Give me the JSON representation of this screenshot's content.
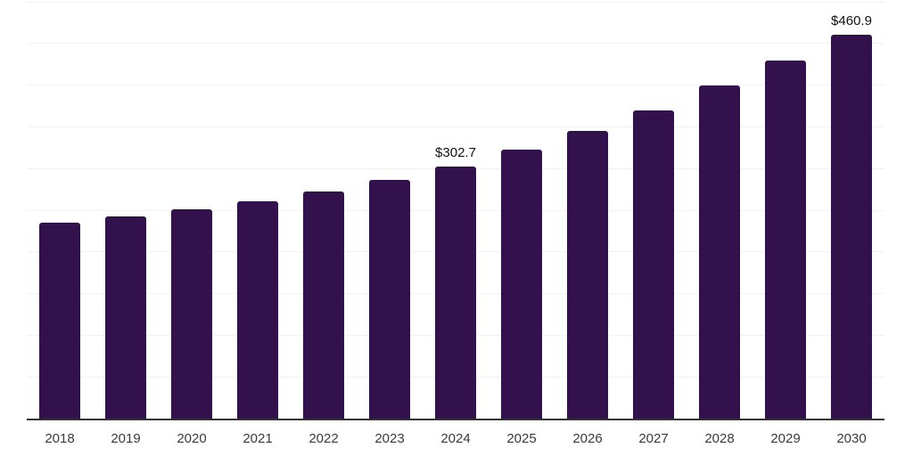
{
  "chart_data": {
    "type": "bar",
    "title": "",
    "xlabel": "",
    "ylabel": "",
    "categories": [
      "2018",
      "2019",
      "2020",
      "2021",
      "2022",
      "2023",
      "2024",
      "2025",
      "2026",
      "2027",
      "2028",
      "2029",
      "2030"
    ],
    "values": [
      235.0,
      242.5,
      251.1,
      260.7,
      272.4,
      286.3,
      302.7,
      322.7,
      345.1,
      369.7,
      399.6,
      429.5,
      460.9
    ],
    "labeled_points": [
      {
        "category": "2024",
        "label": "$302.7"
      },
      {
        "category": "2030",
        "label": "$460.9"
      }
    ],
    "ylim": [
      0,
      500
    ],
    "gridline_step": 50,
    "grid": "horizontal",
    "y_axis_labels_visible": false,
    "legend": "none",
    "colors": {
      "bar": "#32114d",
      "axis": "#333333",
      "gridline": "#f2f2f2",
      "tick_label": "#3a3a3a",
      "value_label": "#111111"
    }
  }
}
